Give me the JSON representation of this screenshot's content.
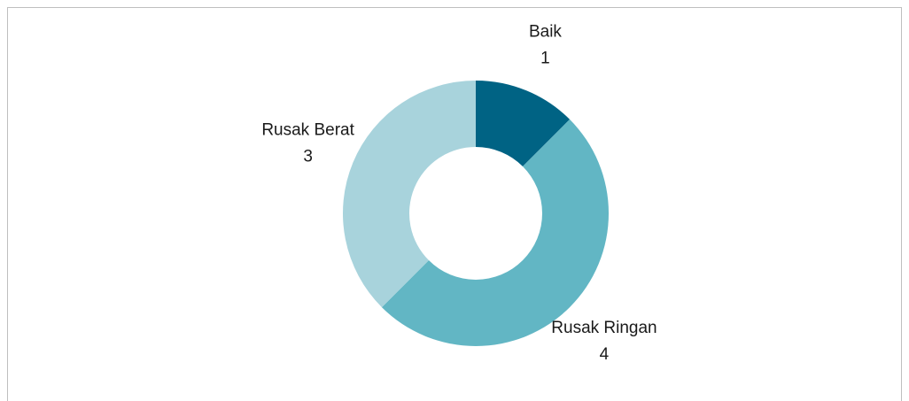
{
  "chart_data": {
    "type": "donut",
    "categories": [
      "Baik",
      "Rusak Ringan",
      "Rusak Berat"
    ],
    "values": [
      1,
      4,
      3
    ],
    "colors": [
      "#006384",
      "#62b6c4",
      "#a8d3dc"
    ]
  }
}
